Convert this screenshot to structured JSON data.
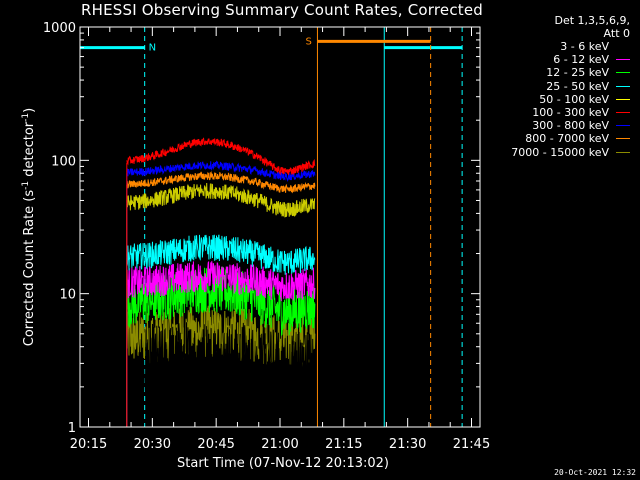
{
  "chart_data": {
    "type": "line",
    "title": "RHESSI Observing Summary Count Rates, Corrected",
    "xlabel": "Start Time (07-Nov-12 20:13:02)",
    "ylabel_parts": [
      "Corrected Count Rate (s",
      "-1",
      " detector",
      "-1",
      ")"
    ],
    "yscale": "log",
    "ylim": [
      1,
      1000
    ],
    "xlim_minutes": [
      0,
      94
    ],
    "x_ticks": [
      {
        "min": 2,
        "label": "20:15"
      },
      {
        "min": 17,
        "label": "20:30"
      },
      {
        "min": 32,
        "label": "20:45"
      },
      {
        "min": 47,
        "label": "21:00"
      },
      {
        "min": 62,
        "label": "21:15"
      },
      {
        "min": 77,
        "label": "21:30"
      },
      {
        "min": 92,
        "label": "21:45"
      }
    ],
    "y_ticks": [
      {
        "value": 1,
        "label": "1"
      },
      {
        "value": 10,
        "label": "10"
      },
      {
        "value": 100,
        "label": "100"
      },
      {
        "value": 1000,
        "label": "1000"
      }
    ],
    "legend_header": [
      "Det 1,3,5,6,9,",
      "Att 0"
    ],
    "series": [
      {
        "name": "3 - 6 keV",
        "color": "#000000",
        "draw_color": "#000000",
        "level": 2.6,
        "noise": 0.35,
        "hump": 0.05,
        "start_level": 1.6
      },
      {
        "name": "6 - 12 keV",
        "color": "#ff00ff",
        "draw_color": "#ff00ff",
        "level": 12,
        "noise": 0.12,
        "hump": 0.05
      },
      {
        "name": "12 - 25 keV",
        "color": "#00ff00",
        "draw_color": "#00ff00",
        "level": 8.2,
        "noise": 0.18,
        "hump": 0.12
      },
      {
        "name": "25 - 50 keV",
        "color": "#00ffff",
        "draw_color": "#00ffff",
        "level": 18.5,
        "noise": 0.1,
        "hump": 0.08
      },
      {
        "name": "50 - 100 keV",
        "color": "#ffff00",
        "draw_color": "#cccc00",
        "level": 47,
        "noise": 0.06,
        "hump": 0.1
      },
      {
        "name": "100 - 300 keV",
        "color": "#ff0000",
        "draw_color": "#ff0000",
        "level": 96,
        "noise": 0.03,
        "hump": 0.16
      },
      {
        "name": "300 - 800 keV",
        "color": "#0000ff",
        "draw_color": "#0000ff",
        "level": 80,
        "noise": 0.03,
        "hump": 0.06
      },
      {
        "name": "800 - 7000 keV",
        "color": "#ff8800",
        "draw_color": "#ff8800",
        "level": 65,
        "noise": 0.03,
        "hump": 0.07
      },
      {
        "name": "7000 - 15000 keV",
        "color": "#8b8b00",
        "draw_color": "#8b8b00",
        "level": 4.6,
        "noise": 0.2,
        "hump": 0.05
      }
    ],
    "data_interval_minutes": [
      11,
      55.2
    ],
    "markers": {
      "night": {
        "label": "N",
        "color": "#00ffff",
        "solid_min": [
          -0.5,
          71.5
        ],
        "dashed_min": [
          15.2,
          89.8
        ],
        "level": 700,
        "segments": [
          [
            -0.5,
            15.2
          ],
          [
            71.5,
            89.8
          ]
        ]
      },
      "saa": {
        "label": "S",
        "color": "#ff8800",
        "solid_min": [
          55.8
        ],
        "dashed_min": [
          82.4
        ],
        "level": 780,
        "segments": [
          [
            55.8,
            82.4
          ]
        ]
      }
    }
  },
  "timestamp": "20-Oct-2021 12:32"
}
